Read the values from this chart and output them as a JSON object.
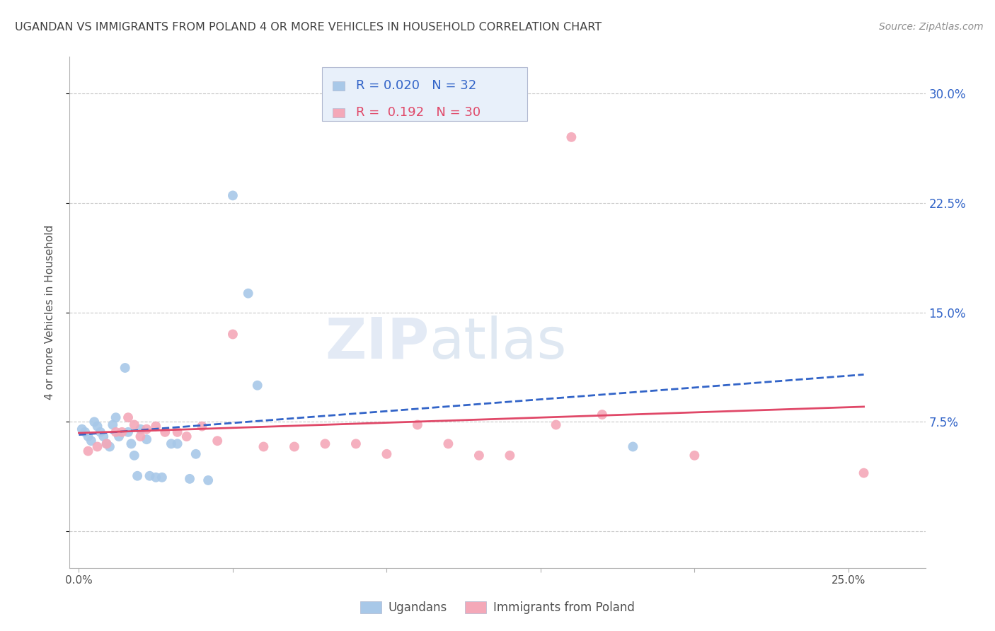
{
  "title": "UGANDAN VS IMMIGRANTS FROM POLAND 4 OR MORE VEHICLES IN HOUSEHOLD CORRELATION CHART",
  "source": "Source: ZipAtlas.com",
  "ylabel": "4 or more Vehicles in Household",
  "ugandan_R": 0.02,
  "ugandan_N": 32,
  "poland_R": 0.192,
  "poland_N": 30,
  "ugandan_color": "#a8c8e8",
  "poland_color": "#f4a8b8",
  "ugandan_line_color": "#3264c8",
  "poland_line_color": "#e04868",
  "legend_box_facecolor": "#e8f0fa",
  "legend_box_edgecolor": "#b0b8d0",
  "watermark_color": "#dce8f4",
  "background_color": "#ffffff",
  "grid_color": "#c8c8c8",
  "title_color": "#404040",
  "right_axis_color": "#3264c8",
  "bottom_legend_color": "#505050",
  "xlim": [
    -0.003,
    0.275
  ],
  "ylim": [
    -0.025,
    0.325
  ],
  "x_ticks": [
    0.0,
    0.05,
    0.1,
    0.15,
    0.2,
    0.25
  ],
  "x_tick_labels": [
    "0.0%",
    "",
    "",
    "",
    "",
    "25.0%"
  ],
  "y_ticks": [
    0.0,
    0.075,
    0.15,
    0.225,
    0.3
  ],
  "y_tick_labels_right": [
    "",
    "7.5%",
    "15.0%",
    "22.5%",
    "30.0%"
  ],
  "marker_size": 100,
  "ugandan_scatter": [
    [
      0.001,
      0.07
    ],
    [
      0.002,
      0.068
    ],
    [
      0.003,
      0.065
    ],
    [
      0.004,
      0.062
    ],
    [
      0.005,
      0.075
    ],
    [
      0.006,
      0.072
    ],
    [
      0.007,
      0.068
    ],
    [
      0.008,
      0.065
    ],
    [
      0.009,
      0.06
    ],
    [
      0.01,
      0.058
    ],
    [
      0.011,
      0.073
    ],
    [
      0.012,
      0.078
    ],
    [
      0.013,
      0.065
    ],
    [
      0.015,
      0.112
    ],
    [
      0.016,
      0.068
    ],
    [
      0.017,
      0.06
    ],
    [
      0.018,
      0.052
    ],
    [
      0.019,
      0.038
    ],
    [
      0.02,
      0.07
    ],
    [
      0.022,
      0.063
    ],
    [
      0.023,
      0.038
    ],
    [
      0.025,
      0.037
    ],
    [
      0.027,
      0.037
    ],
    [
      0.03,
      0.06
    ],
    [
      0.032,
      0.06
    ],
    [
      0.036,
      0.036
    ],
    [
      0.038,
      0.053
    ],
    [
      0.042,
      0.035
    ],
    [
      0.05,
      0.23
    ],
    [
      0.055,
      0.163
    ],
    [
      0.058,
      0.1
    ],
    [
      0.18,
      0.058
    ]
  ],
  "poland_scatter": [
    [
      0.003,
      0.055
    ],
    [
      0.006,
      0.058
    ],
    [
      0.009,
      0.06
    ],
    [
      0.012,
      0.068
    ],
    [
      0.014,
      0.068
    ],
    [
      0.016,
      0.078
    ],
    [
      0.018,
      0.073
    ],
    [
      0.02,
      0.065
    ],
    [
      0.022,
      0.07
    ],
    [
      0.025,
      0.072
    ],
    [
      0.028,
      0.068
    ],
    [
      0.032,
      0.068
    ],
    [
      0.035,
      0.065
    ],
    [
      0.04,
      0.072
    ],
    [
      0.045,
      0.062
    ],
    [
      0.05,
      0.135
    ],
    [
      0.06,
      0.058
    ],
    [
      0.07,
      0.058
    ],
    [
      0.08,
      0.06
    ],
    [
      0.09,
      0.06
    ],
    [
      0.1,
      0.053
    ],
    [
      0.11,
      0.073
    ],
    [
      0.12,
      0.06
    ],
    [
      0.13,
      0.052
    ],
    [
      0.14,
      0.052
    ],
    [
      0.155,
      0.073
    ],
    [
      0.16,
      0.27
    ],
    [
      0.17,
      0.08
    ],
    [
      0.2,
      0.052
    ],
    [
      0.255,
      0.04
    ]
  ]
}
